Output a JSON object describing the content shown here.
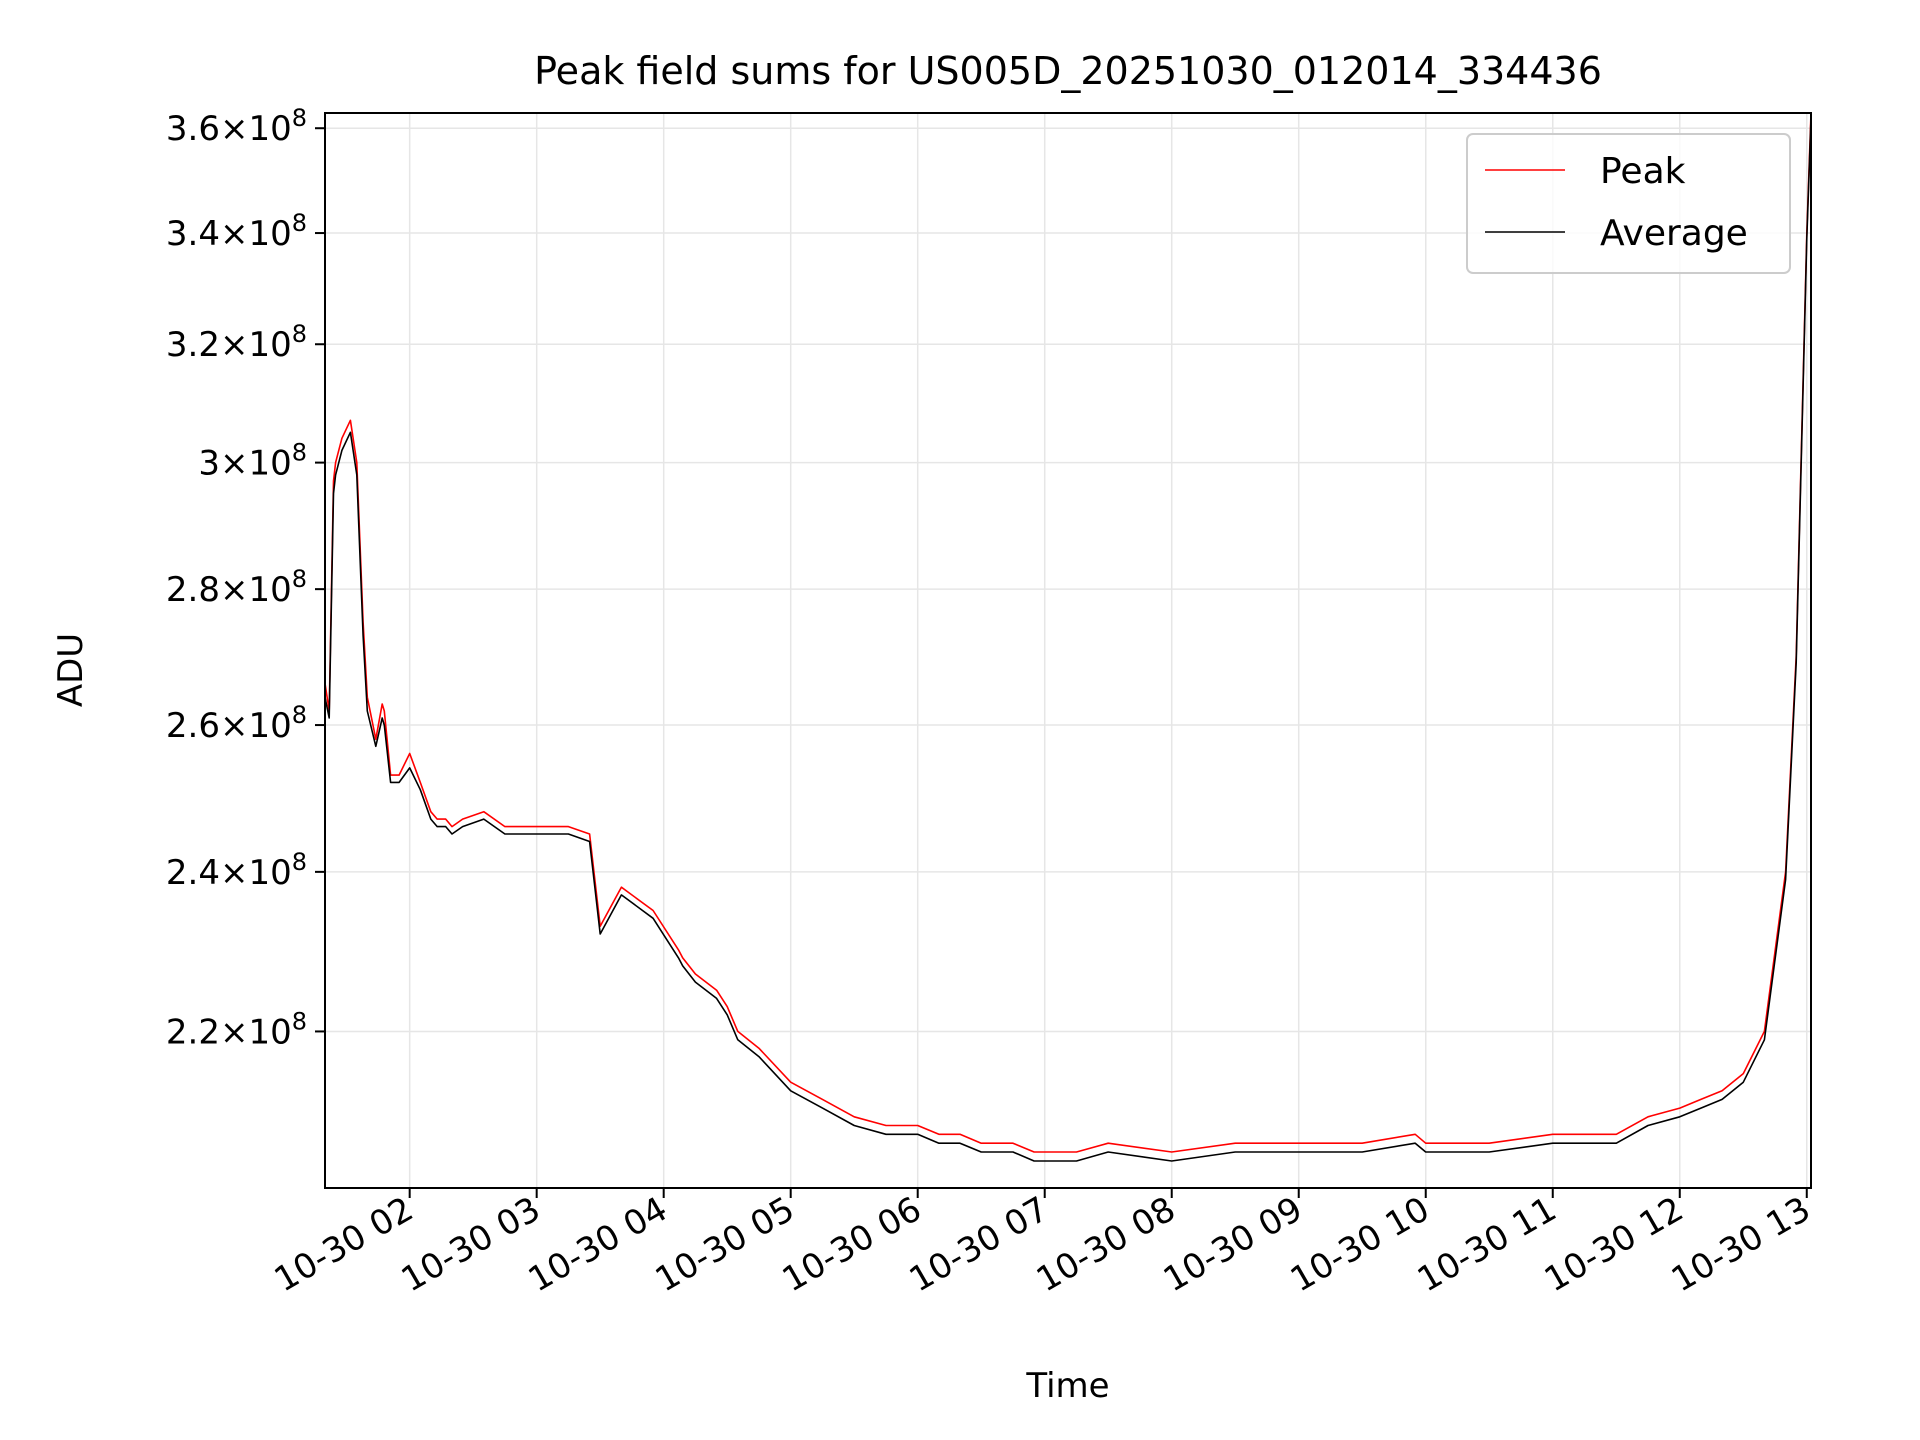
{
  "chart_data": {
    "type": "line",
    "title": "Peak field sums for US005D_20251030_012014_334436",
    "xlabel": "Time",
    "ylabel": "ADU",
    "x_ticks": [
      "10-30 02",
      "10-30 03",
      "10-30 04",
      "10-30 05",
      "10-30 06",
      "10-30 07",
      "10-30 08",
      "10-30 09",
      "10-30 10",
      "10-30 11",
      "10-30 12",
      "10-30 13"
    ],
    "y_ticks": [
      {
        "value": 220000000,
        "mantissa": "2.2",
        "exp": "8"
      },
      {
        "value": 240000000,
        "mantissa": "2.4",
        "exp": "8"
      },
      {
        "value": 260000000,
        "mantissa": "2.6",
        "exp": "8"
      },
      {
        "value": 280000000,
        "mantissa": "2.8",
        "exp": "8"
      },
      {
        "value": 300000000,
        "mantissa": "3",
        "exp": "8"
      },
      {
        "value": 320000000,
        "mantissa": "3.2",
        "exp": "8"
      },
      {
        "value": 340000000,
        "mantissa": "3.4",
        "exp": "8"
      },
      {
        "value": 360000000,
        "mantissa": "3.6",
        "exp": "8"
      }
    ],
    "y_scale": "log",
    "xlim": [
      "2025-10-30 01:20",
      "2025-10-30 13:02"
    ],
    "ylim": [
      202000000,
      363000000
    ],
    "grid": true,
    "legend_position": "top-right",
    "series": [
      {
        "name": "Peak",
        "color": "#ff0000",
        "x": [
          "2025-10-30 01:20",
          "2025-10-30 01:22",
          "2025-10-30 01:24",
          "2025-10-30 01:25",
          "2025-10-30 01:28",
          "2025-10-30 01:32",
          "2025-10-30 01:35",
          "2025-10-30 01:38",
          "2025-10-30 01:40",
          "2025-10-30 01:44",
          "2025-10-30 01:47",
          "2025-10-30 01:48",
          "2025-10-30 01:51",
          "2025-10-30 01:53",
          "2025-10-30 01:55",
          "2025-10-30 02:00",
          "2025-10-30 02:05",
          "2025-10-30 02:10",
          "2025-10-30 02:13",
          "2025-10-30 02:15",
          "2025-10-30 02:17",
          "2025-10-30 02:20",
          "2025-10-30 02:25",
          "2025-10-30 02:35",
          "2025-10-30 02:45",
          "2025-10-30 02:50",
          "2025-10-30 03:00",
          "2025-10-30 03:05",
          "2025-10-30 03:15",
          "2025-10-30 03:25",
          "2025-10-30 03:30",
          "2025-10-30 03:40",
          "2025-10-30 03:55",
          "2025-10-30 04:07",
          "2025-10-30 04:09",
          "2025-10-30 04:15",
          "2025-10-30 04:25",
          "2025-10-30 04:30",
          "2025-10-30 04:35",
          "2025-10-30 04:45",
          "2025-10-30 05:00",
          "2025-10-30 05:15",
          "2025-10-30 05:30",
          "2025-10-30 05:45",
          "2025-10-30 06:00",
          "2025-10-30 06:10",
          "2025-10-30 06:13",
          "2025-10-30 06:17",
          "2025-10-30 06:20",
          "2025-10-30 06:30",
          "2025-10-30 06:45",
          "2025-10-30 06:55",
          "2025-10-30 07:00",
          "2025-10-30 07:15",
          "2025-10-30 07:30",
          "2025-10-30 08:00",
          "2025-10-30 08:30",
          "2025-10-30 09:00",
          "2025-10-30 09:30",
          "2025-10-30 09:55",
          "2025-10-30 10:00",
          "2025-10-30 10:30",
          "2025-10-30 11:00",
          "2025-10-30 11:30",
          "2025-10-30 11:45",
          "2025-10-30 12:00",
          "2025-10-30 12:10",
          "2025-10-30 12:20",
          "2025-10-30 12:30",
          "2025-10-30 12:40",
          "2025-10-30 12:50",
          "2025-10-30 12:55",
          "2025-10-30 13:00",
          "2025-10-30 13:02"
        ],
        "y": [
          266000000,
          262000000,
          297000000,
          300000000,
          304000000,
          307000000,
          300000000,
          275000000,
          264000000,
          258000000,
          263000000,
          262000000,
          253000000,
          253000000,
          253000000,
          256000000,
          252000000,
          248000000,
          247000000,
          247000000,
          247000000,
          246000000,
          247000000,
          248000000,
          246000000,
          246000000,
          246000000,
          246000000,
          246000000,
          245000000,
          233000000,
          238000000,
          235000000,
          230000000,
          229000000,
          227000000,
          225000000,
          223000000,
          220000000,
          218000000,
          214000000,
          212000000,
          210000000,
          209000000,
          209000000,
          208000000,
          208000000,
          208000000,
          208000000,
          207000000,
          207000000,
          206000000,
          206000000,
          206000000,
          207000000,
          206000000,
          207000000,
          207000000,
          207000000,
          208000000,
          207000000,
          207000000,
          208000000,
          208000000,
          210000000,
          211000000,
          212000000,
          213000000,
          215000000,
          220000000,
          240000000,
          270000000,
          340000000,
          363000000
        ]
      },
      {
        "name": "Average",
        "color": "#000000",
        "x": [
          "2025-10-30 01:20",
          "2025-10-30 01:22",
          "2025-10-30 01:24",
          "2025-10-30 01:25",
          "2025-10-30 01:28",
          "2025-10-30 01:32",
          "2025-10-30 01:35",
          "2025-10-30 01:38",
          "2025-10-30 01:40",
          "2025-10-30 01:44",
          "2025-10-30 01:47",
          "2025-10-30 01:48",
          "2025-10-30 01:51",
          "2025-10-30 01:53",
          "2025-10-30 01:55",
          "2025-10-30 02:00",
          "2025-10-30 02:05",
          "2025-10-30 02:10",
          "2025-10-30 02:13",
          "2025-10-30 02:15",
          "2025-10-30 02:17",
          "2025-10-30 02:20",
          "2025-10-30 02:25",
          "2025-10-30 02:35",
          "2025-10-30 02:45",
          "2025-10-30 02:50",
          "2025-10-30 03:00",
          "2025-10-30 03:05",
          "2025-10-30 03:15",
          "2025-10-30 03:25",
          "2025-10-30 03:30",
          "2025-10-30 03:40",
          "2025-10-30 03:55",
          "2025-10-30 04:07",
          "2025-10-30 04:09",
          "2025-10-30 04:15",
          "2025-10-30 04:25",
          "2025-10-30 04:30",
          "2025-10-30 04:35",
          "2025-10-30 04:45",
          "2025-10-30 05:00",
          "2025-10-30 05:15",
          "2025-10-30 05:30",
          "2025-10-30 05:45",
          "2025-10-30 06:00",
          "2025-10-30 06:10",
          "2025-10-30 06:13",
          "2025-10-30 06:17",
          "2025-10-30 06:20",
          "2025-10-30 06:30",
          "2025-10-30 06:45",
          "2025-10-30 06:55",
          "2025-10-30 07:00",
          "2025-10-30 07:15",
          "2025-10-30 07:30",
          "2025-10-30 08:00",
          "2025-10-30 08:30",
          "2025-10-30 09:00",
          "2025-10-30 09:30",
          "2025-10-30 09:55",
          "2025-10-30 10:00",
          "2025-10-30 10:30",
          "2025-10-30 11:00",
          "2025-10-30 11:30",
          "2025-10-30 11:45",
          "2025-10-30 12:00",
          "2025-10-30 12:10",
          "2025-10-30 12:20",
          "2025-10-30 12:30",
          "2025-10-30 12:40",
          "2025-10-30 12:50",
          "2025-10-30 12:55",
          "2025-10-30 13:00",
          "2025-10-30 13:02"
        ],
        "y": [
          264000000,
          261000000,
          295000000,
          298000000,
          302000000,
          305000000,
          298000000,
          273000000,
          262000000,
          257000000,
          261000000,
          260000000,
          252000000,
          252000000,
          252000000,
          254000000,
          251000000,
          247000000,
          246000000,
          246000000,
          246000000,
          245000000,
          246000000,
          247000000,
          245000000,
          245000000,
          245000000,
          245000000,
          245000000,
          244000000,
          232000000,
          237000000,
          234000000,
          229000000,
          228000000,
          226000000,
          224000000,
          222000000,
          219000000,
          217000000,
          213000000,
          211000000,
          209000000,
          208000000,
          208000000,
          207000000,
          207000000,
          207000000,
          207000000,
          206000000,
          206000000,
          205000000,
          205000000,
          205000000,
          206000000,
          205000000,
          206000000,
          206000000,
          206000000,
          207000000,
          206000000,
          206000000,
          207000000,
          207000000,
          209000000,
          210000000,
          211000000,
          212000000,
          214000000,
          219000000,
          239000000,
          269000000,
          339000000,
          362000000
        ]
      }
    ]
  }
}
